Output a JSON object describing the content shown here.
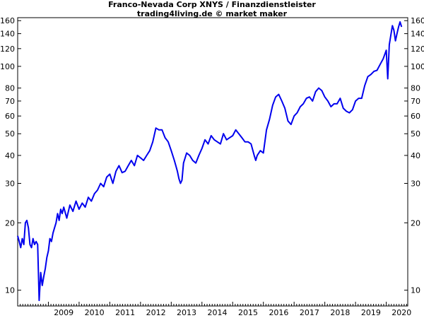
{
  "chart_data": {
    "type": "line",
    "title": "Franco-Nevada Corp XNYS / Finanzdienstleister",
    "subtitle": "trading4living.de © market maker",
    "y_scale": "log",
    "ylim": [
      8.5,
      165
    ],
    "xlim": [
      2008.0,
      2020.7
    ],
    "grid": false,
    "y_ticks": [
      10,
      20,
      30,
      40,
      50,
      60,
      70,
      80,
      100,
      120,
      140,
      160
    ],
    "x_tick_labels": [
      "2009",
      "2010",
      "2011",
      "2012",
      "2013",
      "2014",
      "2015",
      "2016",
      "2017",
      "2018",
      "2019",
      "2020"
    ],
    "series": [
      {
        "color": "#0000ee",
        "x": [
          2008.0,
          2008.05,
          2008.1,
          2008.15,
          2008.2,
          2008.25,
          2008.3,
          2008.35,
          2008.4,
          2008.45,
          2008.5,
          2008.55,
          2008.6,
          2008.65,
          2008.7,
          2008.75,
          2008.8,
          2008.85,
          2008.9,
          2008.95,
          2009.0,
          2009.05,
          2009.1,
          2009.15,
          2009.2,
          2009.25,
          2009.3,
          2009.35,
          2009.4,
          2009.45,
          2009.5,
          2009.6,
          2009.7,
          2009.8,
          2009.9,
          2010.0,
          2010.1,
          2010.2,
          2010.3,
          2010.4,
          2010.5,
          2010.6,
          2010.7,
          2010.8,
          2010.9,
          2011.0,
          2011.1,
          2011.2,
          2011.3,
          2011.4,
          2011.5,
          2011.6,
          2011.7,
          2011.8,
          2011.9,
          2012.0,
          2012.1,
          2012.2,
          2012.3,
          2012.4,
          2012.5,
          2012.6,
          2012.7,
          2012.8,
          2012.9,
          2013.0,
          2013.1,
          2013.15,
          2013.2,
          2013.25,
          2013.3,
          2013.35,
          2013.4,
          2013.5,
          2013.6,
          2013.7,
          2013.8,
          2013.9,
          2014.0,
          2014.1,
          2014.2,
          2014.3,
          2014.4,
          2014.5,
          2014.6,
          2014.7,
          2014.8,
          2014.9,
          2015.0,
          2015.1,
          2015.2,
          2015.3,
          2015.4,
          2015.5,
          2015.6,
          2015.7,
          2015.75,
          2015.8,
          2015.9,
          2016.0,
          2016.1,
          2016.2,
          2016.3,
          2016.4,
          2016.5,
          2016.6,
          2016.7,
          2016.8,
          2016.9,
          2017.0,
          2017.1,
          2017.2,
          2017.3,
          2017.4,
          2017.5,
          2017.6,
          2017.7,
          2017.8,
          2017.9,
          2018.0,
          2018.1,
          2018.2,
          2018.3,
          2018.4,
          2018.5,
          2018.6,
          2018.7,
          2018.8,
          2018.9,
          2019.0,
          2019.1,
          2019.2,
          2019.3,
          2019.4,
          2019.5,
          2019.6,
          2019.7,
          2019.8,
          2019.9,
          2020.0,
          2020.05,
          2020.1,
          2020.15,
          2020.2,
          2020.25,
          2020.3,
          2020.35,
          2020.4,
          2020.45,
          2020.5
        ],
        "values": [
          17.5,
          16.5,
          15.5,
          17.0,
          16.0,
          20.0,
          20.5,
          19.0,
          16.0,
          15.5,
          17.0,
          16.0,
          16.5,
          16.0,
          9.0,
          12.0,
          10.5,
          11.5,
          12.5,
          14.0,
          15.0,
          17.0,
          16.5,
          18.0,
          19.0,
          20.0,
          22.0,
          20.5,
          23.0,
          22.0,
          23.5,
          21.0,
          24.0,
          22.5,
          25.0,
          23.0,
          24.5,
          23.5,
          26.0,
          25.0,
          27.0,
          28.0,
          30.0,
          29.0,
          32.0,
          33.0,
          30.0,
          34.0,
          36.0,
          33.5,
          34.0,
          36.0,
          38.0,
          36.0,
          40.0,
          39.0,
          38.0,
          40.0,
          42.0,
          46.0,
          53.0,
          52.0,
          52.0,
          48.0,
          46.0,
          42.0,
          38.0,
          36.0,
          34.0,
          31.5,
          30.0,
          31.0,
          37.0,
          41.0,
          40.0,
          38.0,
          37.0,
          40.0,
          43.0,
          47.0,
          45.0,
          49.0,
          47.0,
          46.0,
          45.0,
          50.0,
          47.0,
          48.0,
          49.0,
          52.0,
          50.0,
          48.0,
          46.0,
          46.0,
          45.0,
          40.0,
          38.0,
          40.0,
          42.0,
          41.0,
          52.0,
          58.0,
          67.0,
          73.0,
          75.0,
          70.0,
          65.0,
          57.0,
          55.0,
          60.0,
          62.0,
          66.0,
          68.0,
          72.0,
          73.0,
          70.0,
          77.0,
          80.0,
          78.0,
          73.0,
          70.0,
          66.0,
          68.0,
          68.0,
          72.0,
          65.0,
          63.0,
          62.0,
          64.0,
          70.0,
          72.0,
          72.0,
          82.0,
          90.0,
          92.0,
          95.0,
          96.0,
          102.0,
          108.0,
          118.0,
          88.0,
          125.0,
          138.0,
          152.0,
          145.0,
          130.0,
          140.0,
          150.0,
          158.0,
          150.0
        ]
      }
    ]
  }
}
